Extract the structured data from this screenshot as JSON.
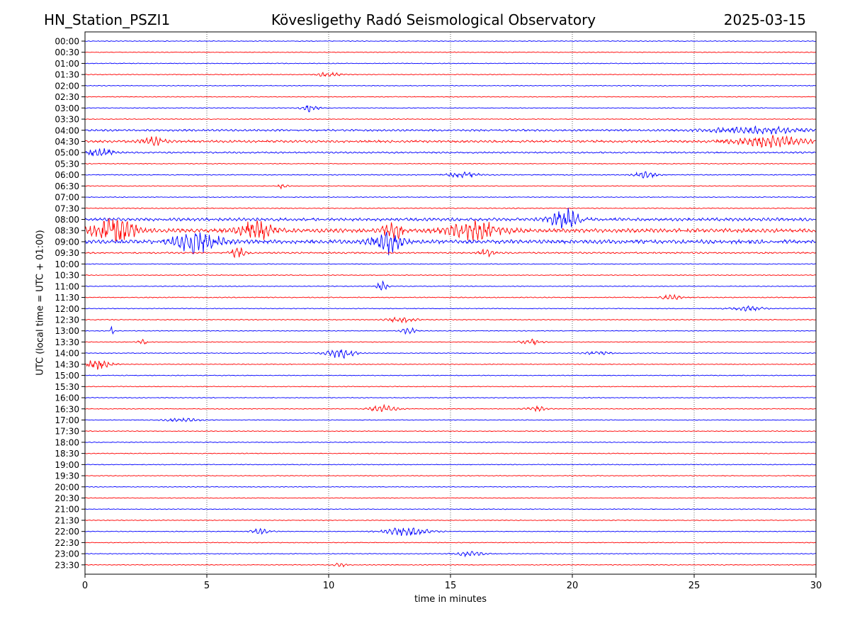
{
  "header": {
    "station": "HN_Station_PSZI1",
    "observatory": "Kövesligethy Radó Seismological Observatory",
    "date": "2025-03-15"
  },
  "colors": {
    "trace_a": "#0000ff",
    "trace_b": "#ff0000",
    "axis": "#000000",
    "grid": "#000000"
  },
  "chart_data": {
    "type": "line",
    "title": "Kövesligethy Radó Seismological Observatory",
    "xlabel": "time in minutes",
    "ylabel": "UTC (local time = UTC + 01:00)",
    "xlim": [
      0,
      30
    ],
    "xticks": [
      0,
      5,
      10,
      15,
      20,
      25,
      30
    ],
    "grid_x": true,
    "rows": [
      "00:00",
      "00:30",
      "01:00",
      "01:30",
      "02:00",
      "02:30",
      "03:00",
      "03:30",
      "04:00",
      "04:30",
      "05:00",
      "05:30",
      "06:00",
      "06:30",
      "07:00",
      "07:30",
      "08:00",
      "08:30",
      "09:00",
      "09:30",
      "10:00",
      "10:30",
      "11:00",
      "11:30",
      "12:00",
      "12:30",
      "13:00",
      "13:30",
      "14:00",
      "14:30",
      "15:00",
      "15:30",
      "16:00",
      "16:30",
      "17:00",
      "17:30",
      "18:00",
      "18:30",
      "19:00",
      "19:30",
      "20:00",
      "20:30",
      "21:00",
      "21:30",
      "22:00",
      "22:30",
      "23:00",
      "23:30"
    ],
    "row_colors": [
      "blue",
      "red"
    ],
    "noise_level": [
      1,
      1,
      1,
      1,
      1,
      1,
      1,
      1,
      2.5,
      3,
      2,
      1,
      1.2,
      1,
      1,
      1.2,
      4,
      5,
      5,
      2,
      1,
      1,
      1,
      1.2,
      1,
      1.2,
      1,
      1,
      1,
      1,
      1,
      1,
      1,
      1,
      1,
      1,
      1,
      1,
      1,
      1,
      1,
      1,
      1,
      1,
      1,
      1,
      1,
      1
    ],
    "events": [
      {
        "row": "01:30",
        "t": 10.0,
        "amp": 3,
        "dur": 0.6
      },
      {
        "row": "03:00",
        "t": 9.2,
        "amp": 4,
        "dur": 0.5
      },
      {
        "row": "04:00",
        "t": 27.5,
        "amp": 4,
        "dur": 2.5
      },
      {
        "row": "04:30",
        "t": 28.0,
        "amp": 6,
        "dur": 2
      },
      {
        "row": "04:30",
        "t": 2.8,
        "amp": 5,
        "dur": 0.6
      },
      {
        "row": "05:00",
        "t": 0.6,
        "amp": 5,
        "dur": 0.8
      },
      {
        "row": "06:00",
        "t": 15.5,
        "amp": 3,
        "dur": 1
      },
      {
        "row": "06:00",
        "t": 23.0,
        "amp": 4,
        "dur": 0.6
      },
      {
        "row": "06:30",
        "t": 8.1,
        "amp": 3,
        "dur": 0.3
      },
      {
        "row": "08:00",
        "t": 19.7,
        "amp": 12,
        "dur": 0.8
      },
      {
        "row": "08:30",
        "t": 1.2,
        "amp": 14,
        "dur": 1.2
      },
      {
        "row": "08:30",
        "t": 7.0,
        "amp": 10,
        "dur": 1
      },
      {
        "row": "08:30",
        "t": 12.6,
        "amp": 14,
        "dur": 0.5
      },
      {
        "row": "08:30",
        "t": 16.0,
        "amp": 10,
        "dur": 1.5
      },
      {
        "row": "09:00",
        "t": 4.6,
        "amp": 14,
        "dur": 1.2
      },
      {
        "row": "09:00",
        "t": 12.4,
        "amp": 14,
        "dur": 0.8
      },
      {
        "row": "09:30",
        "t": 6.3,
        "amp": 5,
        "dur": 0.5
      },
      {
        "row": "09:30",
        "t": 16.5,
        "amp": 5,
        "dur": 0.4
      },
      {
        "row": "11:00",
        "t": 12.2,
        "amp": 6,
        "dur": 0.3
      },
      {
        "row": "11:30",
        "t": 24.0,
        "amp": 3,
        "dur": 0.6
      },
      {
        "row": "12:00",
        "t": 27.2,
        "amp": 2.5,
        "dur": 1
      },
      {
        "row": "12:30",
        "t": 13.0,
        "amp": 3,
        "dur": 0.8
      },
      {
        "row": "13:00",
        "t": 1.1,
        "amp": 5,
        "dur": 0.1
      },
      {
        "row": "13:00",
        "t": 13.3,
        "amp": 4,
        "dur": 0.4
      },
      {
        "row": "13:30",
        "t": 2.4,
        "amp": 3,
        "dur": 0.3
      },
      {
        "row": "13:30",
        "t": 18.3,
        "amp": 3,
        "dur": 0.6
      },
      {
        "row": "14:00",
        "t": 10.5,
        "amp": 6,
        "dur": 0.8
      },
      {
        "row": "14:00",
        "t": 21.0,
        "amp": 2,
        "dur": 0.8
      },
      {
        "row": "14:30",
        "t": 0.5,
        "amp": 6,
        "dur": 0.8
      },
      {
        "row": "16:30",
        "t": 12.2,
        "amp": 4,
        "dur": 0.8
      },
      {
        "row": "16:30",
        "t": 18.5,
        "amp": 3,
        "dur": 0.6
      },
      {
        "row": "17:00",
        "t": 4.0,
        "amp": 2,
        "dur": 1
      },
      {
        "row": "22:00",
        "t": 13.2,
        "amp": 5,
        "dur": 1.3
      },
      {
        "row": "22:00",
        "t": 7.2,
        "amp": 3,
        "dur": 0.6
      },
      {
        "row": "23:00",
        "t": 15.8,
        "amp": 3,
        "dur": 0.8
      },
      {
        "row": "23:30",
        "t": 10.5,
        "amp": 2,
        "dur": 0.4
      }
    ]
  }
}
